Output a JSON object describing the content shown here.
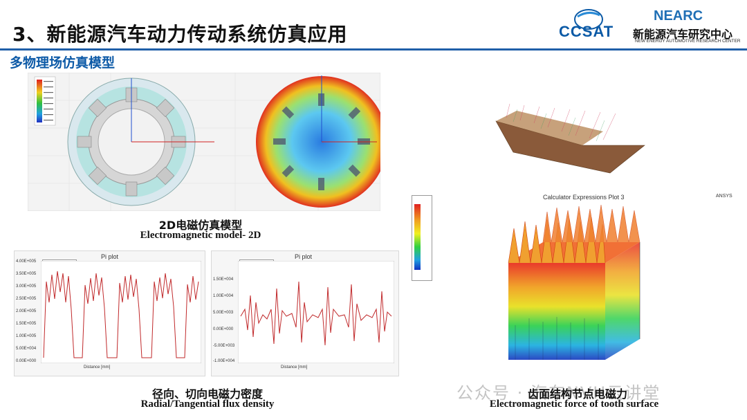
{
  "header": {
    "title": "3、新能源汽车动力传动系统仿真应用",
    "subtitle": "多物理场仿真模型"
  },
  "logos": {
    "ccsat": "CCSAT",
    "nearc_word": "NEARC",
    "nearc_cn": "新能源汽车研究中心",
    "nearc_en": "NEW ENERGY AUTOMOTIVE RESEARCH CENTER"
  },
  "captions": {
    "model2d_cn": "2D电磁仿真模型",
    "model2d_en": "Electromagnetic model- 2D",
    "flux_cn": "径向、切向电磁力密度",
    "flux_en": "Radial/Tangential flux density",
    "tooth_cn": "齿面结构节点电磁力",
    "tooth_en": "Electromagnetic force of tooth surface"
  },
  "plots": {
    "left": {
      "title": "Pi plot",
      "yticks": [
        "4.00E+005",
        "3.50E+005",
        "3.00E+005",
        "2.50E+005",
        "2.00E+005",
        "1.50E+005",
        "1.00E+005",
        "5.00E+004",
        "0.00E+000"
      ],
      "xticks": [
        "0.00",
        "20.00",
        "40.00",
        "60.00",
        "80.00",
        "100.00",
        "120.00",
        "140.00"
      ],
      "xlabel": "Distance [mm]"
    },
    "right": {
      "title": "Pi plot",
      "yticks": [
        "1.50E+004",
        "1.00E+004",
        "5.00E+003",
        "0.00E+000",
        "-5.00E+003",
        "-1.00E+004"
      ],
      "xticks": [
        "0.00",
        "20.00",
        "40.00",
        "60.00",
        "80.00",
        "100.00",
        "120.00",
        "140.00"
      ],
      "xlabel": "Distance [mm]"
    },
    "surface": {
      "title": "Calculator Expressions Plot 3",
      "brand": "ANSYS"
    }
  },
  "watermark": "公众号 · 汽车NVH云讲堂",
  "colors": {
    "accent": "#1f5fa8",
    "subtitle": "#0d5aa7",
    "curve": "#c0282a"
  }
}
